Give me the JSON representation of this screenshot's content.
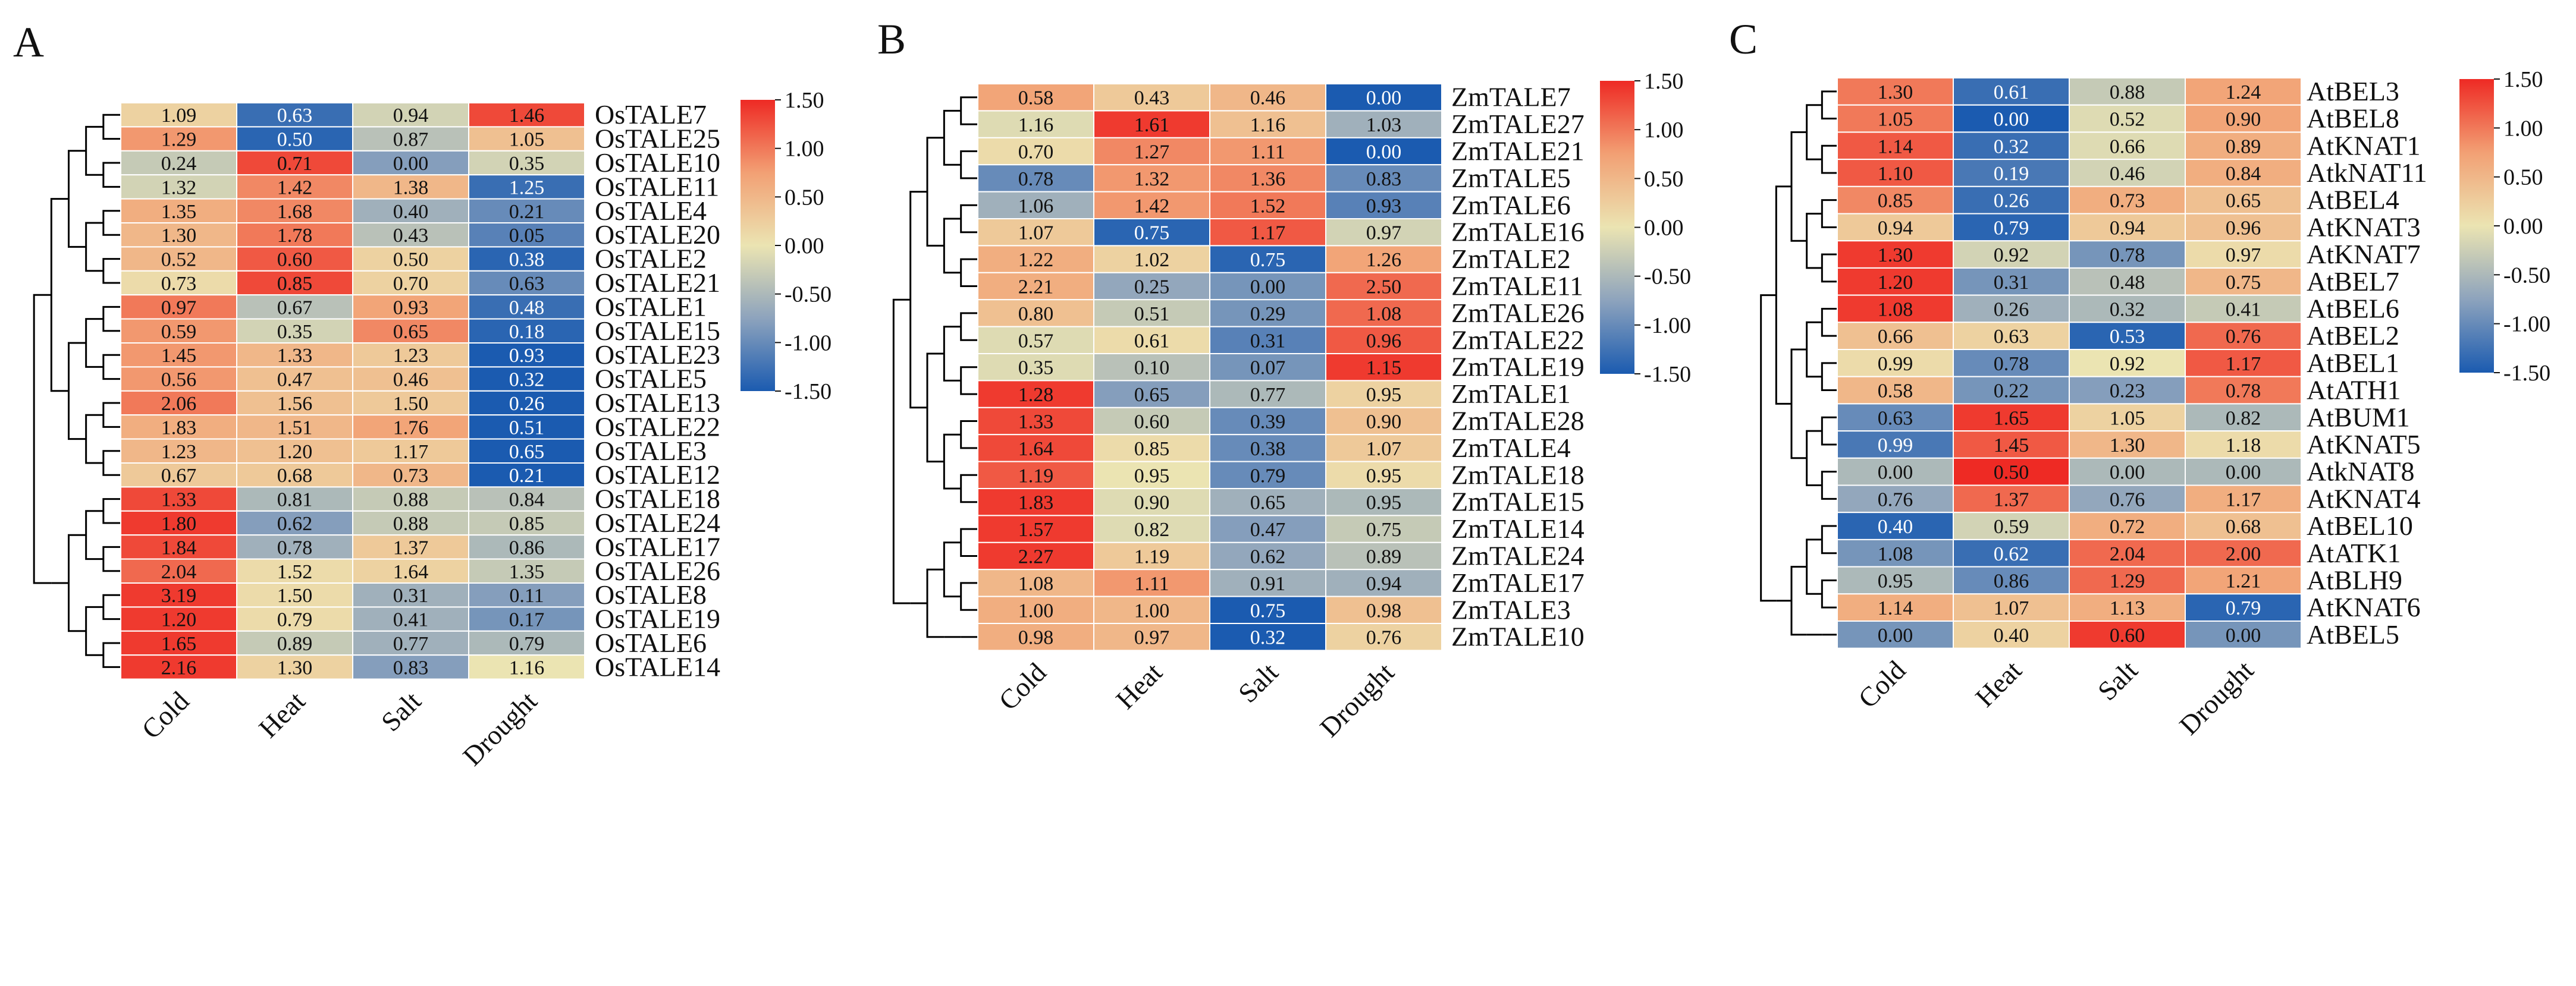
{
  "colors": {
    "low": "#1b5bb0",
    "mid_low": "#8da3bd",
    "mid": "#ebe4b2",
    "mid_high": "#f2a074",
    "high": "#ee2a24",
    "grid": "#ffffff",
    "dendrogram": "#000000"
  },
  "chart_data": [
    {
      "type": "heatmap",
      "panel": "A",
      "columns": [
        "Cold",
        "Heat",
        "Salt",
        "Drought"
      ],
      "rows": [
        "OsTALE7",
        "OsTALE25",
        "OsTALE10",
        "OsTALE11",
        "OsTALE4",
        "OsTALE20",
        "OsTALE2",
        "OsTALE21",
        "OsTALE1",
        "OsTALE15",
        "OsTALE23",
        "OsTALE5",
        "OsTALE13",
        "OsTALE22",
        "OsTALE3",
        "OsTALE12",
        "OsTALE18",
        "OsTALE24",
        "OsTALE17",
        "OsTALE26",
        "OsTALE8",
        "OsTALE19",
        "OsTALE6",
        "OsTALE14"
      ],
      "labels": [
        [
          "1.09",
          "0.63",
          "0.94",
          "1.46"
        ],
        [
          "1.29",
          "0.50",
          "0.87",
          "1.05"
        ],
        [
          "0.24",
          "0.71",
          "0.00",
          "0.35"
        ],
        [
          "1.32",
          "1.42",
          "1.38",
          "1.25"
        ],
        [
          "1.35",
          "1.68",
          "0.40",
          "0.21"
        ],
        [
          "1.30",
          "1.78",
          "0.43",
          "0.05"
        ],
        [
          "0.52",
          "0.60",
          "0.50",
          "0.38"
        ],
        [
          "0.73",
          "0.85",
          "0.70",
          "0.63"
        ],
        [
          "0.97",
          "0.67",
          "0.93",
          "0.48"
        ],
        [
          "0.59",
          "0.35",
          "0.65",
          "0.18"
        ],
        [
          "1.45",
          "1.33",
          "1.23",
          "0.93"
        ],
        [
          "0.56",
          "0.47",
          "0.46",
          "0.32"
        ],
        [
          "2.06",
          "1.56",
          "1.50",
          "0.26"
        ],
        [
          "1.83",
          "1.51",
          "1.76",
          "0.51"
        ],
        [
          "1.23",
          "1.20",
          "1.17",
          "0.65"
        ],
        [
          "0.67",
          "0.68",
          "0.73",
          "0.21"
        ],
        [
          "1.33",
          "0.81",
          "0.88",
          "0.84"
        ],
        [
          "1.80",
          "0.62",
          "0.88",
          "0.85"
        ],
        [
          "1.84",
          "0.78",
          "1.37",
          "0.86"
        ],
        [
          "2.04",
          "1.52",
          "1.64",
          "1.35"
        ],
        [
          "3.19",
          "1.50",
          "0.31",
          "0.11"
        ],
        [
          "1.20",
          "0.79",
          "0.41",
          "0.17"
        ],
        [
          "1.65",
          "0.89",
          "0.77",
          "0.79"
        ],
        [
          "2.16",
          "1.30",
          "0.83",
          "1.16"
        ]
      ],
      "scaled": [
        [
          0.2,
          -1.3,
          -0.2,
          1.3
        ],
        [
          0.8,
          -1.4,
          -0.4,
          0.4
        ],
        [
          -0.3,
          1.3,
          -0.8,
          -0.2
        ],
        [
          -0.2,
          0.9,
          0.5,
          -1.3
        ],
        [
          0.6,
          0.9,
          -0.6,
          -1.0
        ],
        [
          0.5,
          1.0,
          -0.4,
          -1.1
        ],
        [
          0.5,
          1.2,
          0.2,
          -1.4
        ],
        [
          0.1,
          1.3,
          0.2,
          -1.0
        ],
        [
          1.0,
          -0.4,
          0.7,
          -1.3
        ],
        [
          0.8,
          -0.2,
          0.9,
          -1.4
        ],
        [
          0.8,
          0.5,
          0.3,
          -1.5
        ],
        [
          0.8,
          0.4,
          0.4,
          -1.5
        ],
        [
          1.0,
          0.4,
          0.3,
          -1.5
        ],
        [
          0.6,
          0.5,
          0.7,
          -1.5
        ],
        [
          0.5,
          0.4,
          0.3,
          -1.5
        ],
        [
          0.3,
          0.3,
          0.5,
          -1.5
        ],
        [
          1.3,
          -0.5,
          -0.3,
          -0.4
        ],
        [
          1.4,
          -0.8,
          -0.3,
          -0.3
        ],
        [
          1.3,
          -0.6,
          0.3,
          -0.5
        ],
        [
          1.1,
          0.1,
          0.2,
          -0.3
        ],
        [
          1.4,
          0.1,
          -0.6,
          -0.8
        ],
        [
          1.4,
          0.1,
          -0.6,
          -0.9
        ],
        [
          1.4,
          -0.3,
          -0.6,
          -0.5
        ],
        [
          1.4,
          0.2,
          -0.8,
          0.0
        ]
      ],
      "colorbar": {
        "min": -1.5,
        "max": 1.5,
        "ticks": [
          "1.50",
          "1.00",
          "0.50",
          "0.00",
          "-0.50",
          "-1.00",
          "-1.50"
        ]
      }
    },
    {
      "type": "heatmap",
      "panel": "B",
      "columns": [
        "Cold",
        "Heat",
        "Salt",
        "Drought"
      ],
      "rows": [
        "ZmTALE7",
        "ZmTALE27",
        "ZmTALE21",
        "ZmTALE5",
        "ZmTALE6",
        "ZmTALE16",
        "ZmTALE2",
        "ZmTALE11",
        "ZmTALE26",
        "ZmTALE22",
        "ZmTALE19",
        "ZmTALE1",
        "ZmTALE28",
        "ZmTALE4",
        "ZmTALE18",
        "ZmTALE15",
        "ZmTALE14",
        "ZmTALE24",
        "ZmTALE17",
        "ZmTALE3",
        "ZmTALE10"
      ],
      "labels": [
        [
          "0.58",
          "0.43",
          "0.46",
          "0.00"
        ],
        [
          "1.16",
          "1.61",
          "1.16",
          "1.03"
        ],
        [
          "0.70",
          "1.27",
          "1.11",
          "0.00"
        ],
        [
          "0.78",
          "1.32",
          "1.36",
          "0.83"
        ],
        [
          "1.06",
          "1.42",
          "1.52",
          "0.93"
        ],
        [
          "1.07",
          "0.75",
          "1.17",
          "0.97"
        ],
        [
          "1.22",
          "1.02",
          "0.75",
          "1.26"
        ],
        [
          "2.21",
          "0.25",
          "0.00",
          "2.50"
        ],
        [
          "0.80",
          "0.51",
          "0.29",
          "1.08"
        ],
        [
          "0.57",
          "0.61",
          "0.31",
          "0.96"
        ],
        [
          "0.35",
          "0.10",
          "0.07",
          "1.15"
        ],
        [
          "1.28",
          "0.65",
          "0.77",
          "0.95"
        ],
        [
          "1.33",
          "0.60",
          "0.39",
          "0.90"
        ],
        [
          "1.64",
          "0.85",
          "0.38",
          "1.07"
        ],
        [
          "1.19",
          "0.95",
          "0.79",
          "0.95"
        ],
        [
          "1.83",
          "0.90",
          "0.65",
          "0.95"
        ],
        [
          "1.57",
          "0.82",
          "0.47",
          "0.75"
        ],
        [
          "2.27",
          "1.19",
          "0.62",
          "0.89"
        ],
        [
          "1.08",
          "1.11",
          "0.91",
          "0.94"
        ],
        [
          "1.00",
          "1.00",
          "0.75",
          "0.98"
        ],
        [
          "0.98",
          "0.97",
          "0.32",
          "0.76"
        ]
      ],
      "scaled": [
        [
          0.7,
          0.3,
          0.5,
          -1.5
        ],
        [
          -0.1,
          1.4,
          0.4,
          -0.6
        ],
        [
          0.1,
          0.9,
          0.8,
          -1.5
        ],
        [
          -1.0,
          0.8,
          0.9,
          -1.0
        ],
        [
          -0.6,
          0.8,
          1.0,
          -1.1
        ],
        [
          0.3,
          -1.4,
          1.2,
          -0.2
        ],
        [
          0.6,
          0.2,
          -1.4,
          0.7
        ],
        [
          0.6,
          -0.7,
          -0.9,
          1.1
        ],
        [
          0.4,
          -0.3,
          -0.9,
          1.1
        ],
        [
          -0.1,
          0.1,
          -1.1,
          1.2
        ],
        [
          -0.1,
          -0.4,
          -0.9,
          1.4
        ],
        [
          1.4,
          -0.8,
          -0.5,
          0.2
        ],
        [
          1.3,
          -0.3,
          -1.0,
          0.4
        ],
        [
          1.3,
          0.1,
          -1.0,
          0.3
        ],
        [
          1.2,
          0.0,
          -1.0,
          0.1
        ],
        [
          1.4,
          -0.1,
          -0.6,
          -0.5
        ],
        [
          1.4,
          -0.1,
          -0.8,
          -0.3
        ],
        [
          1.4,
          0.3,
          -0.7,
          -0.4
        ],
        [
          0.5,
          0.8,
          -0.6,
          -0.6
        ],
        [
          0.6,
          0.5,
          -1.5,
          0.4
        ],
        [
          0.6,
          0.5,
          -1.5,
          0.2
        ]
      ],
      "colorbar": {
        "min": -1.5,
        "max": 1.5,
        "ticks": [
          "1.50",
          "1.00",
          "0.50",
          "0.00",
          "-0.50",
          "-1.00",
          "-1.50"
        ]
      }
    },
    {
      "type": "heatmap",
      "panel": "C",
      "columns": [
        "Cold",
        "Heat",
        "Salt",
        "Drought"
      ],
      "rows": [
        "AtBEL3",
        "AtBEL8",
        "AtKNAT1",
        "AtkNAT11",
        "AtBEL4",
        "AtKNAT3",
        "AtKNAT7",
        "AtBEL7",
        "AtBEL6",
        "AtBEL2",
        "AtBEL1",
        "AtATH1",
        "AtBUM1",
        "AtKNAT5",
        "AtkNAT8",
        "AtKNAT4",
        "AtBEL10",
        "AtATK1",
        "AtBLH9",
        "AtKNAT6",
        "AtBEL5"
      ],
      "labels": [
        [
          "1.30",
          "0.61",
          "0.88",
          "1.24"
        ],
        [
          "1.05",
          "0.00",
          "0.52",
          "0.90"
        ],
        [
          "1.14",
          "0.32",
          "0.66",
          "0.89"
        ],
        [
          "1.10",
          "0.19",
          "0.46",
          "0.84"
        ],
        [
          "0.85",
          "0.26",
          "0.73",
          "0.65"
        ],
        [
          "0.94",
          "0.79",
          "0.94",
          "0.96"
        ],
        [
          "1.30",
          "0.92",
          "0.78",
          "0.97"
        ],
        [
          "1.20",
          "0.31",
          "0.48",
          "0.75"
        ],
        [
          "1.08",
          "0.26",
          "0.32",
          "0.41"
        ],
        [
          "0.66",
          "0.63",
          "0.53",
          "0.76"
        ],
        [
          "0.99",
          "0.78",
          "0.92",
          "1.17"
        ],
        [
          "0.58",
          "0.22",
          "0.23",
          "0.78"
        ],
        [
          "0.63",
          "1.65",
          "1.05",
          "0.82"
        ],
        [
          "0.99",
          "1.45",
          "1.30",
          "1.18"
        ],
        [
          "0.00",
          "0.50",
          "0.00",
          "0.00"
        ],
        [
          "0.76",
          "1.37",
          "0.76",
          "1.17"
        ],
        [
          "0.40",
          "0.59",
          "0.72",
          "0.68"
        ],
        [
          "1.08",
          "0.62",
          "2.04",
          "2.00"
        ],
        [
          "0.95",
          "0.86",
          "1.29",
          "1.21"
        ],
        [
          "1.14",
          "1.07",
          "1.13",
          "0.79"
        ],
        [
          "0.00",
          "0.40",
          "0.60",
          "0.00"
        ]
      ],
      "scaled": [
        [
          1.0,
          -1.3,
          -0.3,
          0.7
        ],
        [
          1.0,
          -1.5,
          -0.1,
          0.7
        ],
        [
          1.2,
          -1.3,
          -0.1,
          0.6
        ],
        [
          1.2,
          -1.2,
          -0.2,
          0.6
        ],
        [
          0.9,
          -1.3,
          0.6,
          0.4
        ],
        [
          0.3,
          -1.4,
          0.3,
          0.4
        ],
        [
          1.4,
          -0.2,
          -0.9,
          0.1
        ],
        [
          1.4,
          -0.9,
          -0.4,
          0.5
        ],
        [
          1.4,
          -0.6,
          -0.5,
          -0.3
        ],
        [
          0.4,
          0.2,
          -1.4,
          1.1
        ],
        [
          0.1,
          -1.0,
          0.0,
          1.2
        ],
        [
          0.5,
          -0.9,
          -0.8,
          1.0
        ],
        [
          -1.0,
          1.4,
          0.2,
          -0.5
        ],
        [
          -1.2,
          1.2,
          0.5,
          0.1
        ],
        [
          -0.5,
          1.5,
          -0.5,
          -0.5
        ],
        [
          -0.7,
          1.1,
          -0.7,
          0.6
        ],
        [
          -1.4,
          -0.2,
          0.6,
          0.4
        ],
        [
          -0.9,
          -1.3,
          1.1,
          1.1
        ],
        [
          -0.5,
          -1.0,
          1.1,
          0.7
        ],
        [
          0.6,
          0.4,
          0.6,
          -1.4
        ],
        [
          -0.9,
          0.2,
          1.4,
          -0.9
        ]
      ],
      "colorbar": {
        "min": -1.5,
        "max": 1.5,
        "ticks": [
          "1.50",
          "1.00",
          "0.50",
          "0.00",
          "-0.50",
          "-1.00",
          "-1.50"
        ]
      }
    }
  ]
}
